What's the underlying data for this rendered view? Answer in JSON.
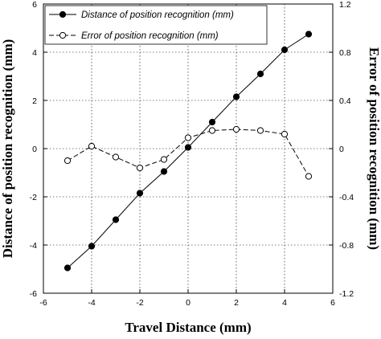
{
  "chart_data": {
    "type": "line",
    "xlabel": "Travel Distance (mm)",
    "ylabel": "Distance of position recognition (mm)",
    "y2label": "Error of position recognition (mm)",
    "xlim": [
      -6,
      6
    ],
    "ylim": [
      -6,
      6
    ],
    "y2lim": [
      -1.2,
      1.2
    ],
    "xticks": [
      "-6",
      "-4",
      "-2",
      "0",
      "2",
      "4",
      "6"
    ],
    "yticks": [
      "-6",
      "-4",
      "-2",
      "0",
      "2",
      "4",
      "6"
    ],
    "y2ticks": [
      "-1.2",
      "-0.8",
      "-0.4",
      "0",
      "0.4",
      "0.8",
      "1.2"
    ],
    "grid": true,
    "legend_position": "top-left",
    "series": [
      {
        "name": "Distance of position recognition (mm)",
        "axis": "left",
        "marker": "filled-circle",
        "line": "solid",
        "x": [
          -5,
          -4,
          -3,
          -2,
          -1,
          0,
          1,
          2,
          3,
          4,
          5
        ],
        "values": [
          -4.95,
          -4.05,
          -2.95,
          -1.85,
          -0.95,
          0.05,
          1.1,
          2.15,
          3.1,
          4.1,
          4.75
        ]
      },
      {
        "name": "Error of position recognition (mm)",
        "axis": "right",
        "marker": "open-circle",
        "line": "dashed",
        "x": [
          -5,
          -4,
          -3,
          -2,
          -1,
          0,
          1,
          2,
          3,
          4,
          5
        ],
        "values": [
          -0.1,
          0.02,
          -0.07,
          -0.16,
          -0.09,
          0.09,
          0.15,
          0.16,
          0.15,
          0.12,
          -0.23
        ]
      }
    ]
  }
}
